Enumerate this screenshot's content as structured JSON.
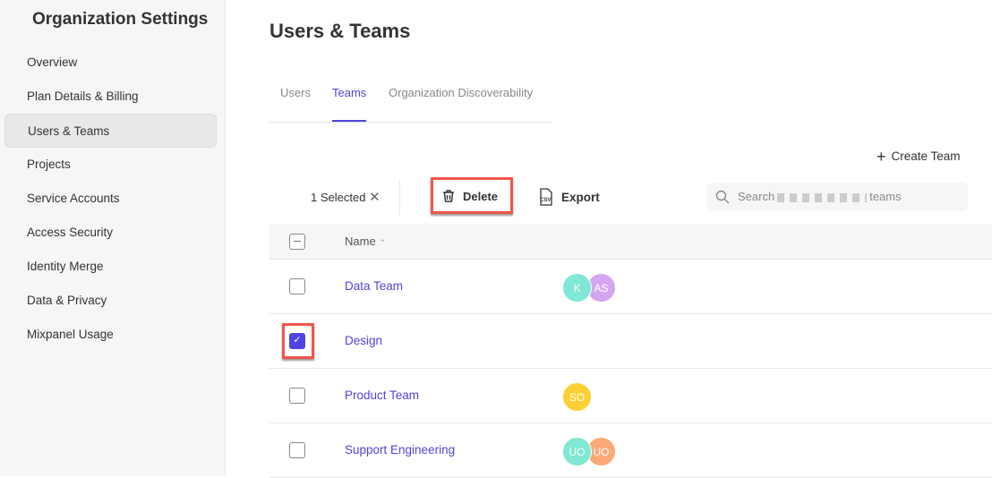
{
  "sidebar": {
    "title": "Organization Settings",
    "items": [
      {
        "label": "Overview"
      },
      {
        "label": "Plan Details & Billing"
      },
      {
        "label": "Users & Teams",
        "active": true
      },
      {
        "label": "Projects"
      },
      {
        "label": "Service Accounts"
      },
      {
        "label": "Access Security"
      },
      {
        "label": "Identity Merge"
      },
      {
        "label": "Data & Privacy"
      },
      {
        "label": "Mixpanel Usage"
      }
    ]
  },
  "main": {
    "title": "Users & Teams",
    "tabs": [
      {
        "label": "Users"
      },
      {
        "label": "Teams",
        "active": true
      },
      {
        "label": "Organization Discoverability"
      }
    ],
    "create_team": "Create Team",
    "selected": "1 Selected",
    "delete": "Delete",
    "export": "Export",
    "search_prefix": "Search",
    "search_suffix": "teams",
    "column_name": "Name",
    "rows": [
      {
        "name": "Data Team",
        "checked": false,
        "avatars": [
          {
            "initials": "K",
            "color": "#80e8d4"
          },
          {
            "initials": "AS",
            "color": "#d4a6f2"
          }
        ]
      },
      {
        "name": "Design",
        "checked": true,
        "avatars": []
      },
      {
        "name": "Product Team",
        "checked": false,
        "avatars": [
          {
            "initials": "SO",
            "color": "#fdd135"
          }
        ]
      },
      {
        "name": "Support Engineering",
        "checked": false,
        "avatars": [
          {
            "initials": "UO",
            "color": "#80e8d4"
          },
          {
            "initials": "UO",
            "color": "#fca97a"
          }
        ]
      }
    ]
  },
  "colors": {
    "accent": "#4f44e0",
    "highlight": "#f4554a"
  }
}
